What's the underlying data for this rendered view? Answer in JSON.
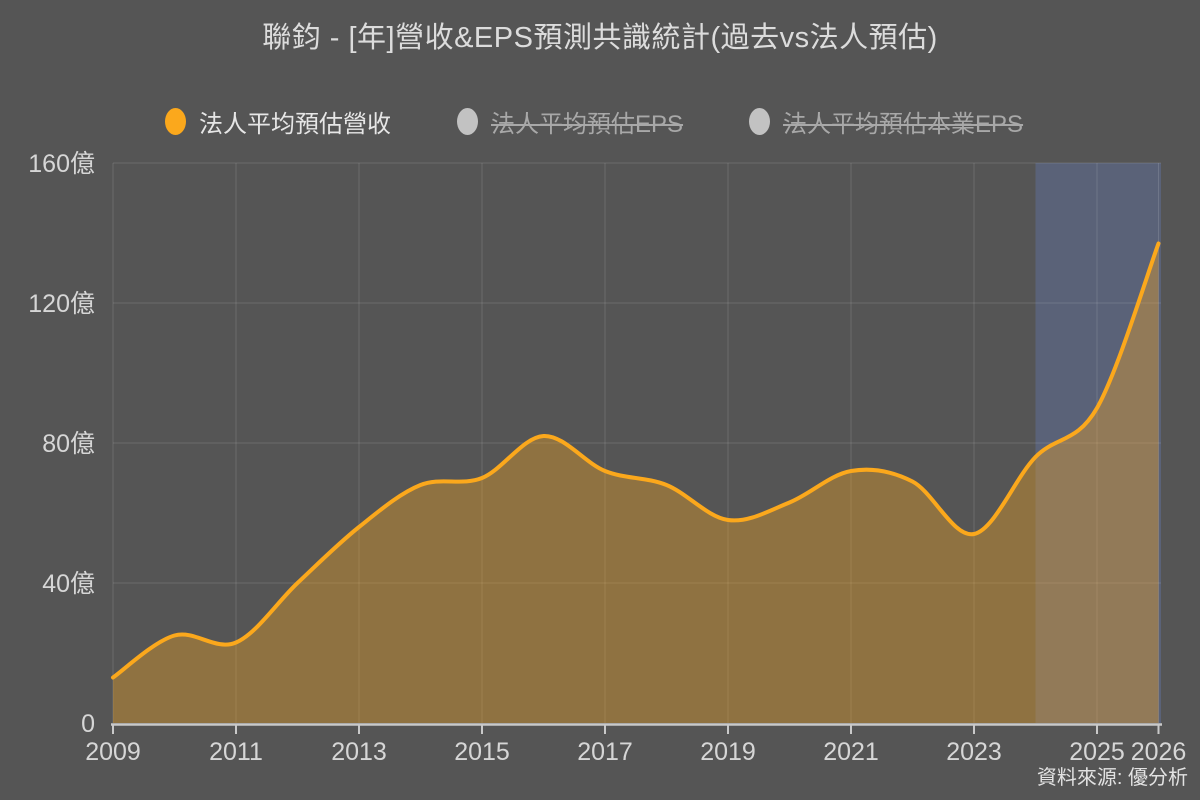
{
  "title": "聯鈞 - [年]營收&EPS預測共識統計(過去vs法人預估)",
  "source": "資料來源: 優分析",
  "legend": {
    "items": [
      {
        "label": "法人平均預估營收",
        "color": "#FBA81C",
        "active": true
      },
      {
        "label": "法人平均預估EPS",
        "color": "#C2C2C2",
        "active": false
      },
      {
        "label": "法人平均預估本業EPS",
        "color": "#C2C2C2",
        "active": false
      }
    ]
  },
  "chart_data": {
    "type": "area",
    "title": "聯鈞 - [年]營收&EPS預測共識統計(過去vs法人預估)",
    "x": [
      2009,
      2010,
      2011,
      2012,
      2013,
      2014,
      2015,
      2016,
      2017,
      2018,
      2019,
      2020,
      2021,
      2022,
      2023,
      2024,
      2025,
      2026
    ],
    "series": [
      {
        "name": "法人平均預估營收",
        "unit": "億",
        "values": [
          13,
          25,
          23,
          40,
          56,
          68,
          70,
          82,
          72,
          68,
          58,
          63,
          72,
          69,
          54,
          76,
          90,
          137
        ]
      }
    ],
    "xlabel": "",
    "ylabel": "",
    "xlim": [
      2009,
      2026
    ],
    "ylim": [
      0,
      160
    ],
    "yticks": [
      {
        "value": 0,
        "label": "0"
      },
      {
        "value": 40,
        "label": "40億"
      },
      {
        "value": 80,
        "label": "80億"
      },
      {
        "value": 120,
        "label": "120億"
      },
      {
        "value": 160,
        "label": "160億"
      }
    ],
    "xticks": [
      2009,
      2011,
      2013,
      2015,
      2017,
      2019,
      2021,
      2023,
      2025,
      2026
    ],
    "grid": true,
    "legend_position": "top",
    "forecast_band": {
      "from": 2024,
      "to": 2026
    },
    "colors": {
      "background": "#555555",
      "line": "#FBA81C",
      "area_fill": "rgba(251,168,28,0.35)",
      "forecast_band": "rgba(98,116,163,0.45)",
      "gridline": "rgba(255,255,255,0.13)",
      "axis_line": "#c9c9c9",
      "tick_label": "#d6d6d6"
    }
  }
}
